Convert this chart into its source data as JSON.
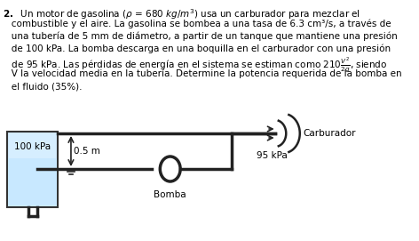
{
  "text_problem": "2.  Un motor de gasolina (ρ = 680 kg/m³) usa un carburador para mezclar el\n    combustible y el aire. La gasolina se bombea a una tasa de 6.3 cm³/s, a través de\n    una tubería de 5 mm de diámetro, a partir de un tanque que mantiene una presión\n    de 100 kPa. La bomba descarga en una boquilla en el carburador con una presión\n    de 95 kPa. Las pérdidas de energía en el sistema se estiman como 210 V²/(2g), siendo\n    V la velocidad media en la tubería. Determine la potencia requerida de la bomba en\n    el fluido (35%).",
  "tank_label": "100 kPa",
  "carb_label": "Carburador",
  "pressure_label": "95 kPa",
  "pump_label": "Bomba",
  "height_label": "0.5 m",
  "tank_color": "#d6eeff",
  "tank_border": "#333333",
  "pipe_color": "#222222",
  "bg_color": "#ffffff",
  "lw": 1.5
}
